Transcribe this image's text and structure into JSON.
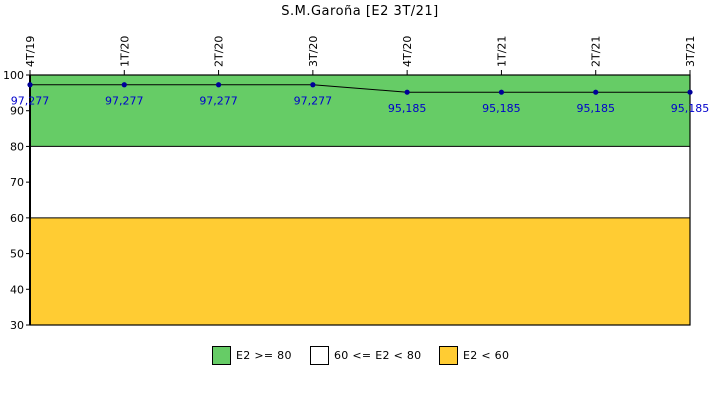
{
  "chart_data": {
    "type": "line",
    "title": "S.M.Garoña [E2 3T/21]",
    "categories": [
      "4T/19",
      "1T/20",
      "2T/20",
      "3T/20",
      "4T/20",
      "1T/21",
      "2T/21",
      "3T/21"
    ],
    "series": [
      {
        "values": [
          97.277,
          97.277,
          97.277,
          97.277,
          95.185,
          95.185,
          95.185,
          95.185
        ],
        "labels": [
          "97,277",
          "97,277",
          "97,277",
          "97,277",
          "95,185",
          "95,185",
          "95,185",
          "95,185"
        ]
      }
    ],
    "ylim": [
      30,
      100
    ],
    "yticks": [
      30,
      40,
      50,
      60,
      70,
      80,
      90,
      100
    ],
    "bands": [
      {
        "from": 80,
        "to": 100,
        "color": "#66cc66",
        "label": "E2 >= 80"
      },
      {
        "from": 60,
        "to": 80,
        "color": "#ffffff",
        "label": "60 <= E2 < 80"
      },
      {
        "from": 30,
        "to": 60,
        "color": "#ffcc33",
        "label": "E2 < 60"
      }
    ],
    "colors": {
      "line": "#000000",
      "marker": "#000099",
      "label": "#0000cc"
    },
    "legend_position": "bottom"
  }
}
